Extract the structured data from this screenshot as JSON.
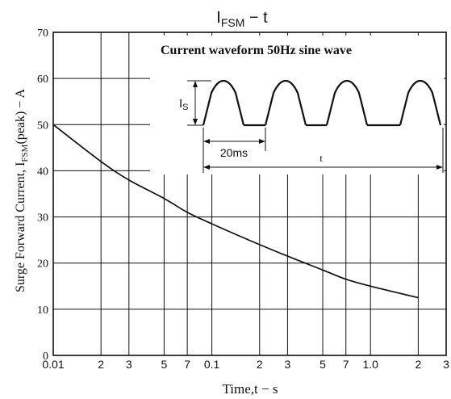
{
  "chart_data": {
    "type": "line",
    "title": "I",
    "title_sub": "FSM",
    "title_rest": "  −  t",
    "xlabel": "Time,t − s",
    "ylabel_pre": "Surge Forward Current, I",
    "ylabel_sub": "FSM",
    "ylabel_post": "(peak) − A",
    "x_scale": "log",
    "xlim": [
      0.01,
      3
    ],
    "ylim": [
      0,
      70
    ],
    "x_ticks": [
      {
        "value": 0.01,
        "label": "0.01"
      },
      {
        "value": 0.02,
        "label": "2"
      },
      {
        "value": 0.03,
        "label": "3"
      },
      {
        "value": 0.05,
        "label": "5"
      },
      {
        "value": 0.07,
        "label": "7"
      },
      {
        "value": 0.1,
        "label": "0.1"
      },
      {
        "value": 0.2,
        "label": "2"
      },
      {
        "value": 0.3,
        "label": "3"
      },
      {
        "value": 0.5,
        "label": "5"
      },
      {
        "value": 0.7,
        "label": "7"
      },
      {
        "value": 1.0,
        "label": "1.0"
      },
      {
        "value": 2,
        "label": "2"
      },
      {
        "value": 3,
        "label": "3"
      }
    ],
    "y_ticks": [
      0,
      10,
      20,
      30,
      40,
      50,
      60,
      70
    ],
    "grid": true,
    "series": [
      {
        "x": [
          0.01,
          0.02,
          0.03,
          0.05,
          0.07,
          0.1,
          0.2,
          0.3,
          0.5,
          0.7,
          1.0,
          2.0
        ],
        "y": [
          50,
          42,
          38,
          34,
          31,
          28.5,
          24,
          21.5,
          18.5,
          16.5,
          15,
          12.5
        ]
      }
    ],
    "inset": {
      "title": "Current waveform 50Hz sine wave",
      "peak_label": "I",
      "peak_label_sub": "S",
      "period_label": "20ms",
      "duration_label": "t"
    }
  }
}
